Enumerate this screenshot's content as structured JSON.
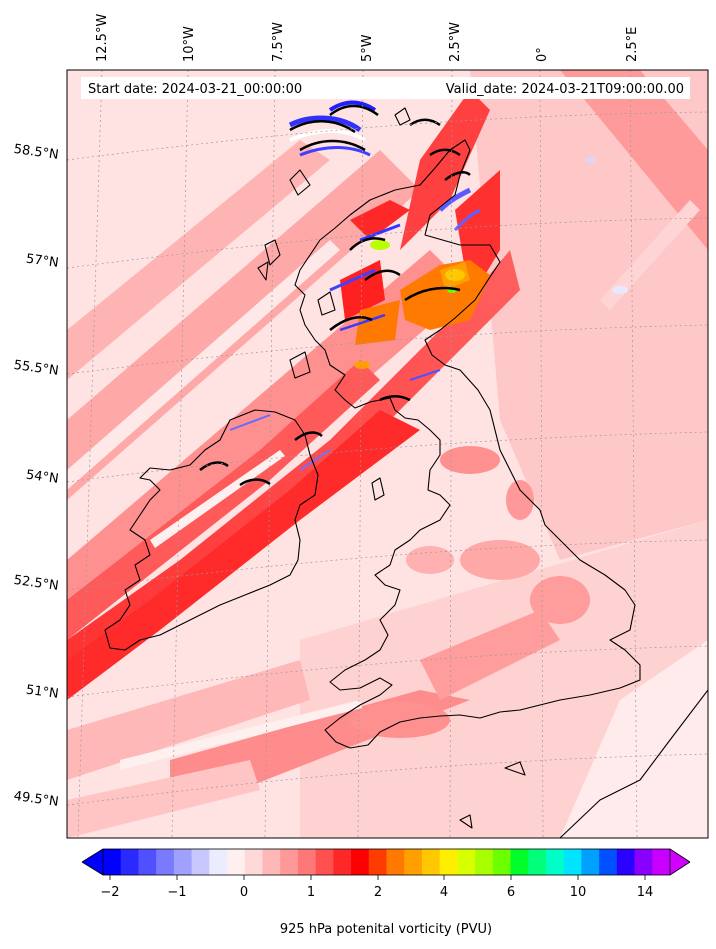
{
  "header": {
    "start_date": "Start date: 2024-03-21_00:00:00",
    "valid_date": "Valid_date: 2024-03-21T09:00:00.00"
  },
  "longitude_labels": [
    "12.5°W",
    "10°W",
    "7.5°W",
    "5°W",
    "2.5°W",
    "0°",
    "2.5°E"
  ],
  "latitude_labels": [
    "58.5°N",
    "57°N",
    "55.5°N",
    "54°N",
    "52.5°N",
    "51°N",
    "49.5°N"
  ],
  "colorbar": {
    "title": "925 hPa potenital vorticity (PVU)",
    "tick_labels": [
      "−2",
      "−1",
      "0",
      "1",
      "2",
      "4",
      "6",
      "10",
      "14"
    ],
    "colors": [
      "#0000ff",
      "#2a2aff",
      "#5050ff",
      "#7a7aff",
      "#a0a0ff",
      "#c8c8ff",
      "#ececff",
      "#fff0f0",
      "#ffd8d8",
      "#ffb8b8",
      "#ff9898",
      "#ff7878",
      "#ff5050",
      "#ff2828",
      "#ff0000",
      "#ff3c00",
      "#ff7800",
      "#ffa000",
      "#ffc800",
      "#ffee00",
      "#d8ff00",
      "#a8ff00",
      "#6cff00",
      "#00ff2a",
      "#00ff7a",
      "#00ffc8",
      "#00e4ff",
      "#00a0ff",
      "#0050ff",
      "#2a00ff",
      "#8a00ff",
      "#c800ff"
    ],
    "underflow_color": "#0000ff",
    "overflow_color": "#d000ff"
  },
  "map": {
    "background_color": "#ffe2e2",
    "coastline_color": "#000000"
  }
}
